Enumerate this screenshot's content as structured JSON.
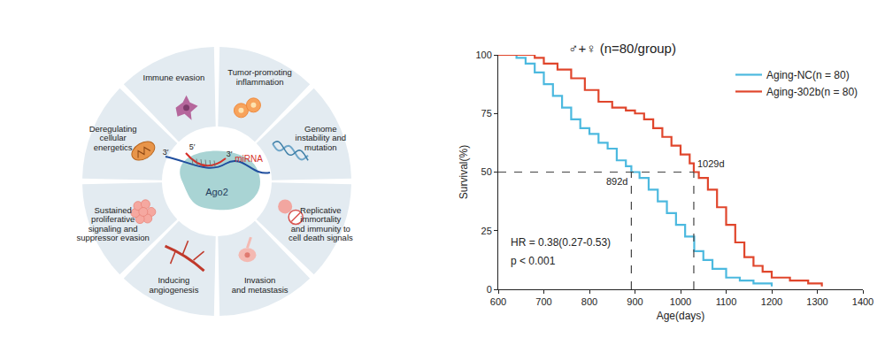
{
  "diagram": {
    "segments": [
      {
        "label_lines": [
          "Tumor-promoting",
          "inflammation"
        ]
      },
      {
        "label_lines": [
          "Genome",
          "instability and",
          "mutation"
        ]
      },
      {
        "label_lines": [
          "Replicative",
          "immortality",
          "and immunity to",
          "cell death signals"
        ]
      },
      {
        "label_lines": [
          "Invasion",
          "and metastasis"
        ]
      },
      {
        "label_lines": [
          "Inducing",
          "angiogenesis"
        ]
      },
      {
        "label_lines": [
          "Sustained",
          "proliferative",
          "signaling and",
          "suppressor evasion"
        ]
      },
      {
        "label_lines": [
          "Deregulating",
          "cellular",
          "energetics"
        ]
      },
      {
        "label_lines": [
          "Immune evasion"
        ]
      }
    ],
    "center_labels": {
      "rna_3prime": "3′",
      "rna_5prime": "5′",
      "mirna_3prime": "3′",
      "mirna": "miRNA",
      "protein": "Ago2"
    }
  },
  "chart_data": {
    "type": "step",
    "title": "♂+♀ (n=80/group)",
    "x_label": "Age(days)",
    "y_label": "Survival(%)",
    "xlim": [
      600,
      1400
    ],
    "xticks": [
      600,
      700,
      800,
      900,
      1000,
      1100,
      1200,
      1300,
      1400
    ],
    "ylim": [
      0,
      100
    ],
    "yticks": [
      0,
      25,
      50,
      75,
      100
    ],
    "grid": false,
    "legend": "top-right",
    "series": [
      {
        "name": "Aging-NC(n = 80)",
        "color": "#4cb9df",
        "x": [
          600,
          640,
          660,
          680,
          700,
          720,
          740,
          760,
          780,
          800,
          820,
          840,
          860,
          880,
          892,
          910,
          930,
          950,
          970,
          990,
          1010,
          1030,
          1050,
          1070,
          1100,
          1130,
          1160,
          1200
        ],
        "values": [
          100,
          98.75,
          96.25,
          92.5,
          87.5,
          82.5,
          77.5,
          72.5,
          68.75,
          66.25,
          62.5,
          60,
          55,
          52.5,
          50,
          47.5,
          42.5,
          37.5,
          32.5,
          27.5,
          22.5,
          16.25,
          12.5,
          8.75,
          5,
          3.75,
          2.5,
          1.25
        ]
      },
      {
        "name": "Aging-302b(n = 80)",
        "color": "#e0462c",
        "x": [
          600,
          660,
          680,
          700,
          730,
          760,
          790,
          820,
          850,
          880,
          900,
          920,
          940,
          960,
          980,
          1000,
          1020,
          1029,
          1040,
          1060,
          1080,
          1100,
          1120,
          1140,
          1160,
          1180,
          1200,
          1240,
          1280,
          1310
        ],
        "values": [
          100,
          100,
          98.75,
          96.25,
          93.75,
          90,
          85,
          80,
          77.5,
          76.25,
          75,
          72.5,
          68.75,
          65,
          61.25,
          57.5,
          53.75,
          50,
          47.5,
          42.5,
          35,
          27.5,
          20,
          13.75,
          10,
          7.5,
          5,
          3.75,
          2.5,
          1.25
        ]
      }
    ],
    "median_lines": [
      {
        "x": 892,
        "y": 50,
        "label": "892d"
      },
      {
        "x": 1029,
        "y": 50,
        "label": "1029d"
      }
    ],
    "annotations": [
      "HR = 0.38(0.27-0.53)",
      "p < 0.001"
    ]
  }
}
